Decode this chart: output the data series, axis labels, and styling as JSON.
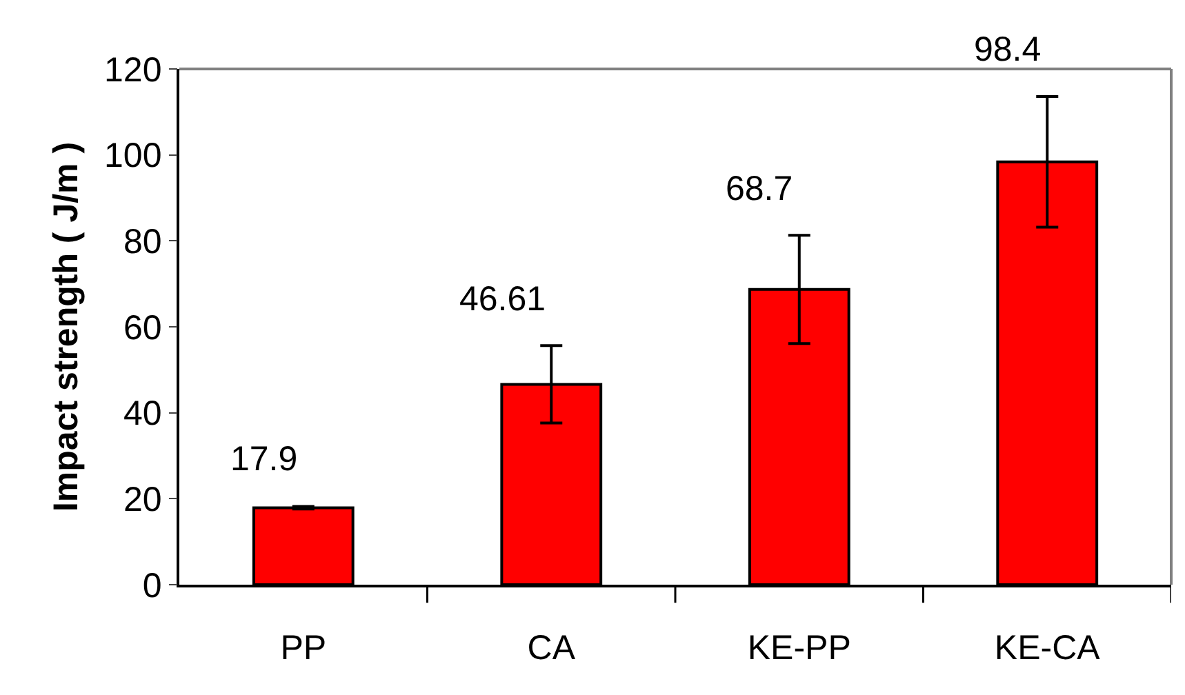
{
  "chart_data": {
    "type": "bar",
    "ylabel": "Impact strength ( J/m )",
    "categories": [
      "PP",
      "CA",
      "KE-PP",
      "KE-CA"
    ],
    "values": [
      17.9,
      46.61,
      68.7,
      98.4
    ],
    "errors": [
      0.3,
      9,
      12.6,
      15.2
    ],
    "color": "#ff0000",
    "ylim": [
      0,
      120
    ],
    "yticks": [
      0,
      20,
      40,
      60,
      80,
      100,
      120
    ],
    "data_labels": true
  }
}
